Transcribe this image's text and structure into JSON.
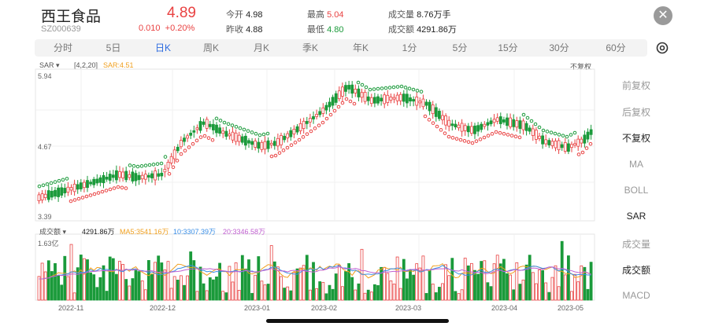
{
  "header": {
    "name": "西王食品",
    "code": "SZ000639",
    "price": "4.89",
    "change": "0.010",
    "change_pct": "+0.20%",
    "open_label": "今开",
    "open": "4.98",
    "prev_label": "昨收",
    "prev": "4.88",
    "high_label": "最高",
    "high": "5.04",
    "low_label": "最低",
    "low": "4.80",
    "vol_label": "成交量",
    "vol": "8.76万手",
    "amt_label": "成交额",
    "amt": "4291.86万"
  },
  "tabs": [
    "分时",
    "5日",
    "日K",
    "周K",
    "月K",
    "季K",
    "年K",
    "1分",
    "5分",
    "15分",
    "30分",
    "60分"
  ],
  "active_tab": "日K",
  "indicator": {
    "name": "SAR",
    "params": "[4,2,20]",
    "value": "SAR:4.51",
    "fuquan": "不复权"
  },
  "price_axis": {
    "top": "5.94",
    "mid": "4.67",
    "bottom": "3.39"
  },
  "volume": {
    "label": "成交额",
    "value": "4291.86万",
    "ma5": "MA5:3541.16万",
    "ma10": "10:3307.39万",
    "ma20": "20:3346.58万",
    "max": "1.63亿"
  },
  "side_options": [
    "前复权",
    "后复权",
    "不复权",
    "MA",
    "BOLL",
    "SAR",
    "成交量",
    "成交额",
    "MACD"
  ],
  "selected_side": [
    "不复权",
    "SAR",
    "成交额"
  ],
  "dates": [
    "2022-11",
    "2022-12",
    "2023-01",
    "2023-02",
    "2023-03",
    "2023-04",
    "2023-05"
  ],
  "colors": {
    "up": "#e94242",
    "down": "#1a9a3a",
    "sar_up": "#e94242",
    "sar_down": "#1a9a3a",
    "ma5": "#f0a020",
    "ma10": "#3a8ee6",
    "ma20": "#c060d0",
    "accent": "#2c6be0"
  },
  "icons": {
    "close": "close-icon",
    "settings": "gear-icon",
    "dropdown": "caret-down-icon"
  }
}
